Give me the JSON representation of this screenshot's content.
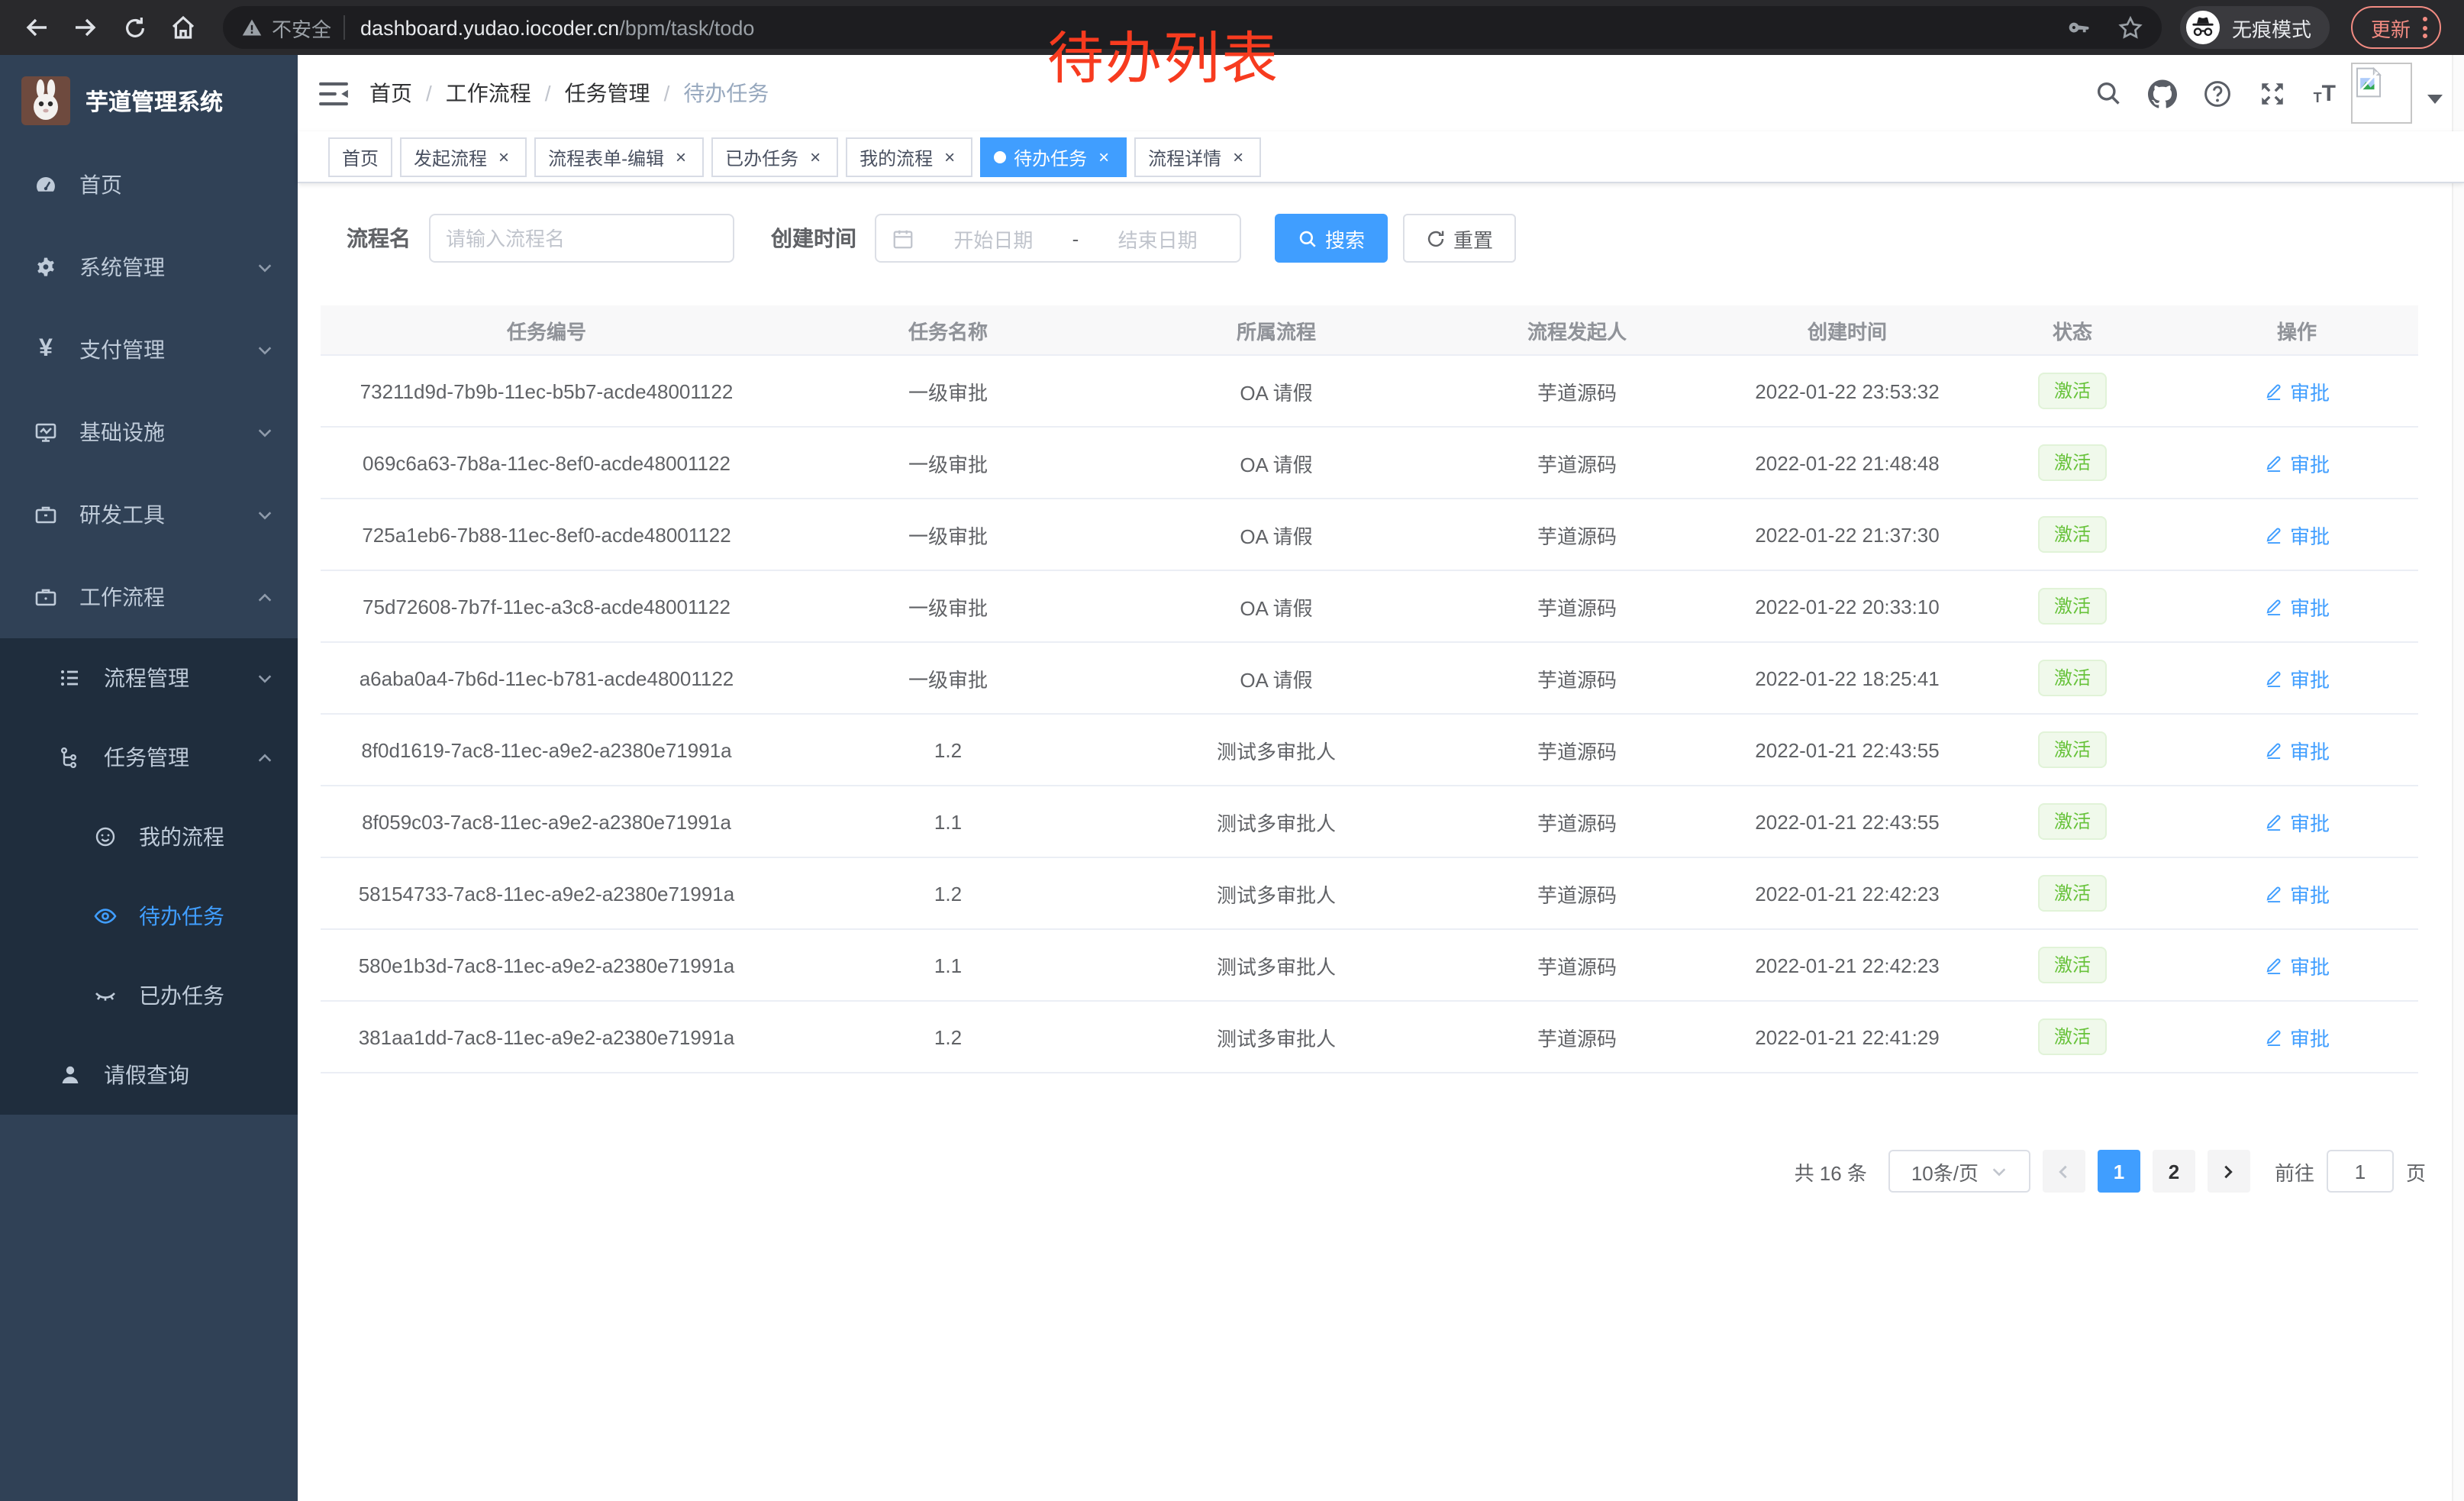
{
  "browser": {
    "security_label": "不安全",
    "url_host": "dashboard.yudao.iocoder.cn",
    "url_path": "/bpm/task/todo",
    "incognito_label": "无痕模式",
    "update_label": "更新"
  },
  "annotation": {
    "text": "待办列表",
    "color": "#f73b1f"
  },
  "sidebar": {
    "title": "芋道管理系统",
    "items": [
      {
        "label": "首页"
      },
      {
        "label": "系统管理"
      },
      {
        "label": "支付管理"
      },
      {
        "label": "基础设施"
      },
      {
        "label": "研发工具"
      },
      {
        "label": "工作流程"
      },
      {
        "label": "流程管理"
      },
      {
        "label": "任务管理"
      },
      {
        "label": "我的流程"
      },
      {
        "label": "待办任务"
      },
      {
        "label": "已办任务"
      },
      {
        "label": "请假查询"
      }
    ]
  },
  "breadcrumb": {
    "items": [
      "首页",
      "工作流程",
      "任务管理",
      "待办任务"
    ],
    "separator": "/"
  },
  "tabs": {
    "close_glyph": "×",
    "items": [
      {
        "label": "首页",
        "closable": false,
        "active": false
      },
      {
        "label": "发起流程",
        "closable": true,
        "active": false
      },
      {
        "label": "流程表单-编辑",
        "closable": true,
        "active": false
      },
      {
        "label": "已办任务",
        "closable": true,
        "active": false
      },
      {
        "label": "我的流程",
        "closable": true,
        "active": false
      },
      {
        "label": "待办任务",
        "closable": true,
        "active": true
      },
      {
        "label": "流程详情",
        "closable": true,
        "active": false
      }
    ]
  },
  "filters": {
    "name_label": "流程名",
    "name_placeholder": "请输入流程名",
    "time_label": "创建时间",
    "start_placeholder": "开始日期",
    "range_separator": "-",
    "end_placeholder": "结束日期",
    "search_label": "搜索",
    "reset_label": "重置"
  },
  "table": {
    "columns": [
      "任务编号",
      "任务名称",
      "所属流程",
      "流程发起人",
      "创建时间",
      "状态",
      "操作"
    ],
    "rows": [
      {
        "id": "73211d9d-7b9b-11ec-b5b7-acde48001122",
        "name": "一级审批",
        "process": "OA 请假",
        "initiator": "芋道源码",
        "created": "2022-01-22 23:53:32",
        "status": "激活",
        "action": "审批"
      },
      {
        "id": "069c6a63-7b8a-11ec-8ef0-acde48001122",
        "name": "一级审批",
        "process": "OA 请假",
        "initiator": "芋道源码",
        "created": "2022-01-22 21:48:48",
        "status": "激活",
        "action": "审批"
      },
      {
        "id": "725a1eb6-7b88-11ec-8ef0-acde48001122",
        "name": "一级审批",
        "process": "OA 请假",
        "initiator": "芋道源码",
        "created": "2022-01-22 21:37:30",
        "status": "激活",
        "action": "审批"
      },
      {
        "id": "75d72608-7b7f-11ec-a3c8-acde48001122",
        "name": "一级审批",
        "process": "OA 请假",
        "initiator": "芋道源码",
        "created": "2022-01-22 20:33:10",
        "status": "激活",
        "action": "审批"
      },
      {
        "id": "a6aba0a4-7b6d-11ec-b781-acde48001122",
        "name": "一级审批",
        "process": "OA 请假",
        "initiator": "芋道源码",
        "created": "2022-01-22 18:25:41",
        "status": "激活",
        "action": "审批"
      },
      {
        "id": "8f0d1619-7ac8-11ec-a9e2-a2380e71991a",
        "name": "1.2",
        "process": "测试多审批人",
        "initiator": "芋道源码",
        "created": "2022-01-21 22:43:55",
        "status": "激活",
        "action": "审批"
      },
      {
        "id": "8f059c03-7ac8-11ec-a9e2-a2380e71991a",
        "name": "1.1",
        "process": "测试多审批人",
        "initiator": "芋道源码",
        "created": "2022-01-21 22:43:55",
        "status": "激活",
        "action": "审批"
      },
      {
        "id": "58154733-7ac8-11ec-a9e2-a2380e71991a",
        "name": "1.2",
        "process": "测试多审批人",
        "initiator": "芋道源码",
        "created": "2022-01-21 22:42:23",
        "status": "激活",
        "action": "审批"
      },
      {
        "id": "580e1b3d-7ac8-11ec-a9e2-a2380e71991a",
        "name": "1.1",
        "process": "测试多审批人",
        "initiator": "芋道源码",
        "created": "2022-01-21 22:42:23",
        "status": "激活",
        "action": "审批"
      },
      {
        "id": "381aa1dd-7ac8-11ec-a9e2-a2380e71991a",
        "name": "1.2",
        "process": "测试多审批人",
        "initiator": "芋道源码",
        "created": "2022-01-21 22:41:29",
        "status": "激活",
        "action": "审批"
      }
    ]
  },
  "pagination": {
    "total": "共 16 条",
    "page_size": "10条/页",
    "pages": [
      "1",
      "2"
    ],
    "current": "1",
    "goto_label": "前往",
    "goto_value": "1",
    "unit": "页"
  },
  "colors": {
    "primary": "#409eff",
    "success_text": "#67c23a",
    "success_bg": "#f0f9eb",
    "sidebar_bg": "#304156",
    "submenu_bg": "#1f2d3d",
    "annotation": "#f73b1f"
  }
}
